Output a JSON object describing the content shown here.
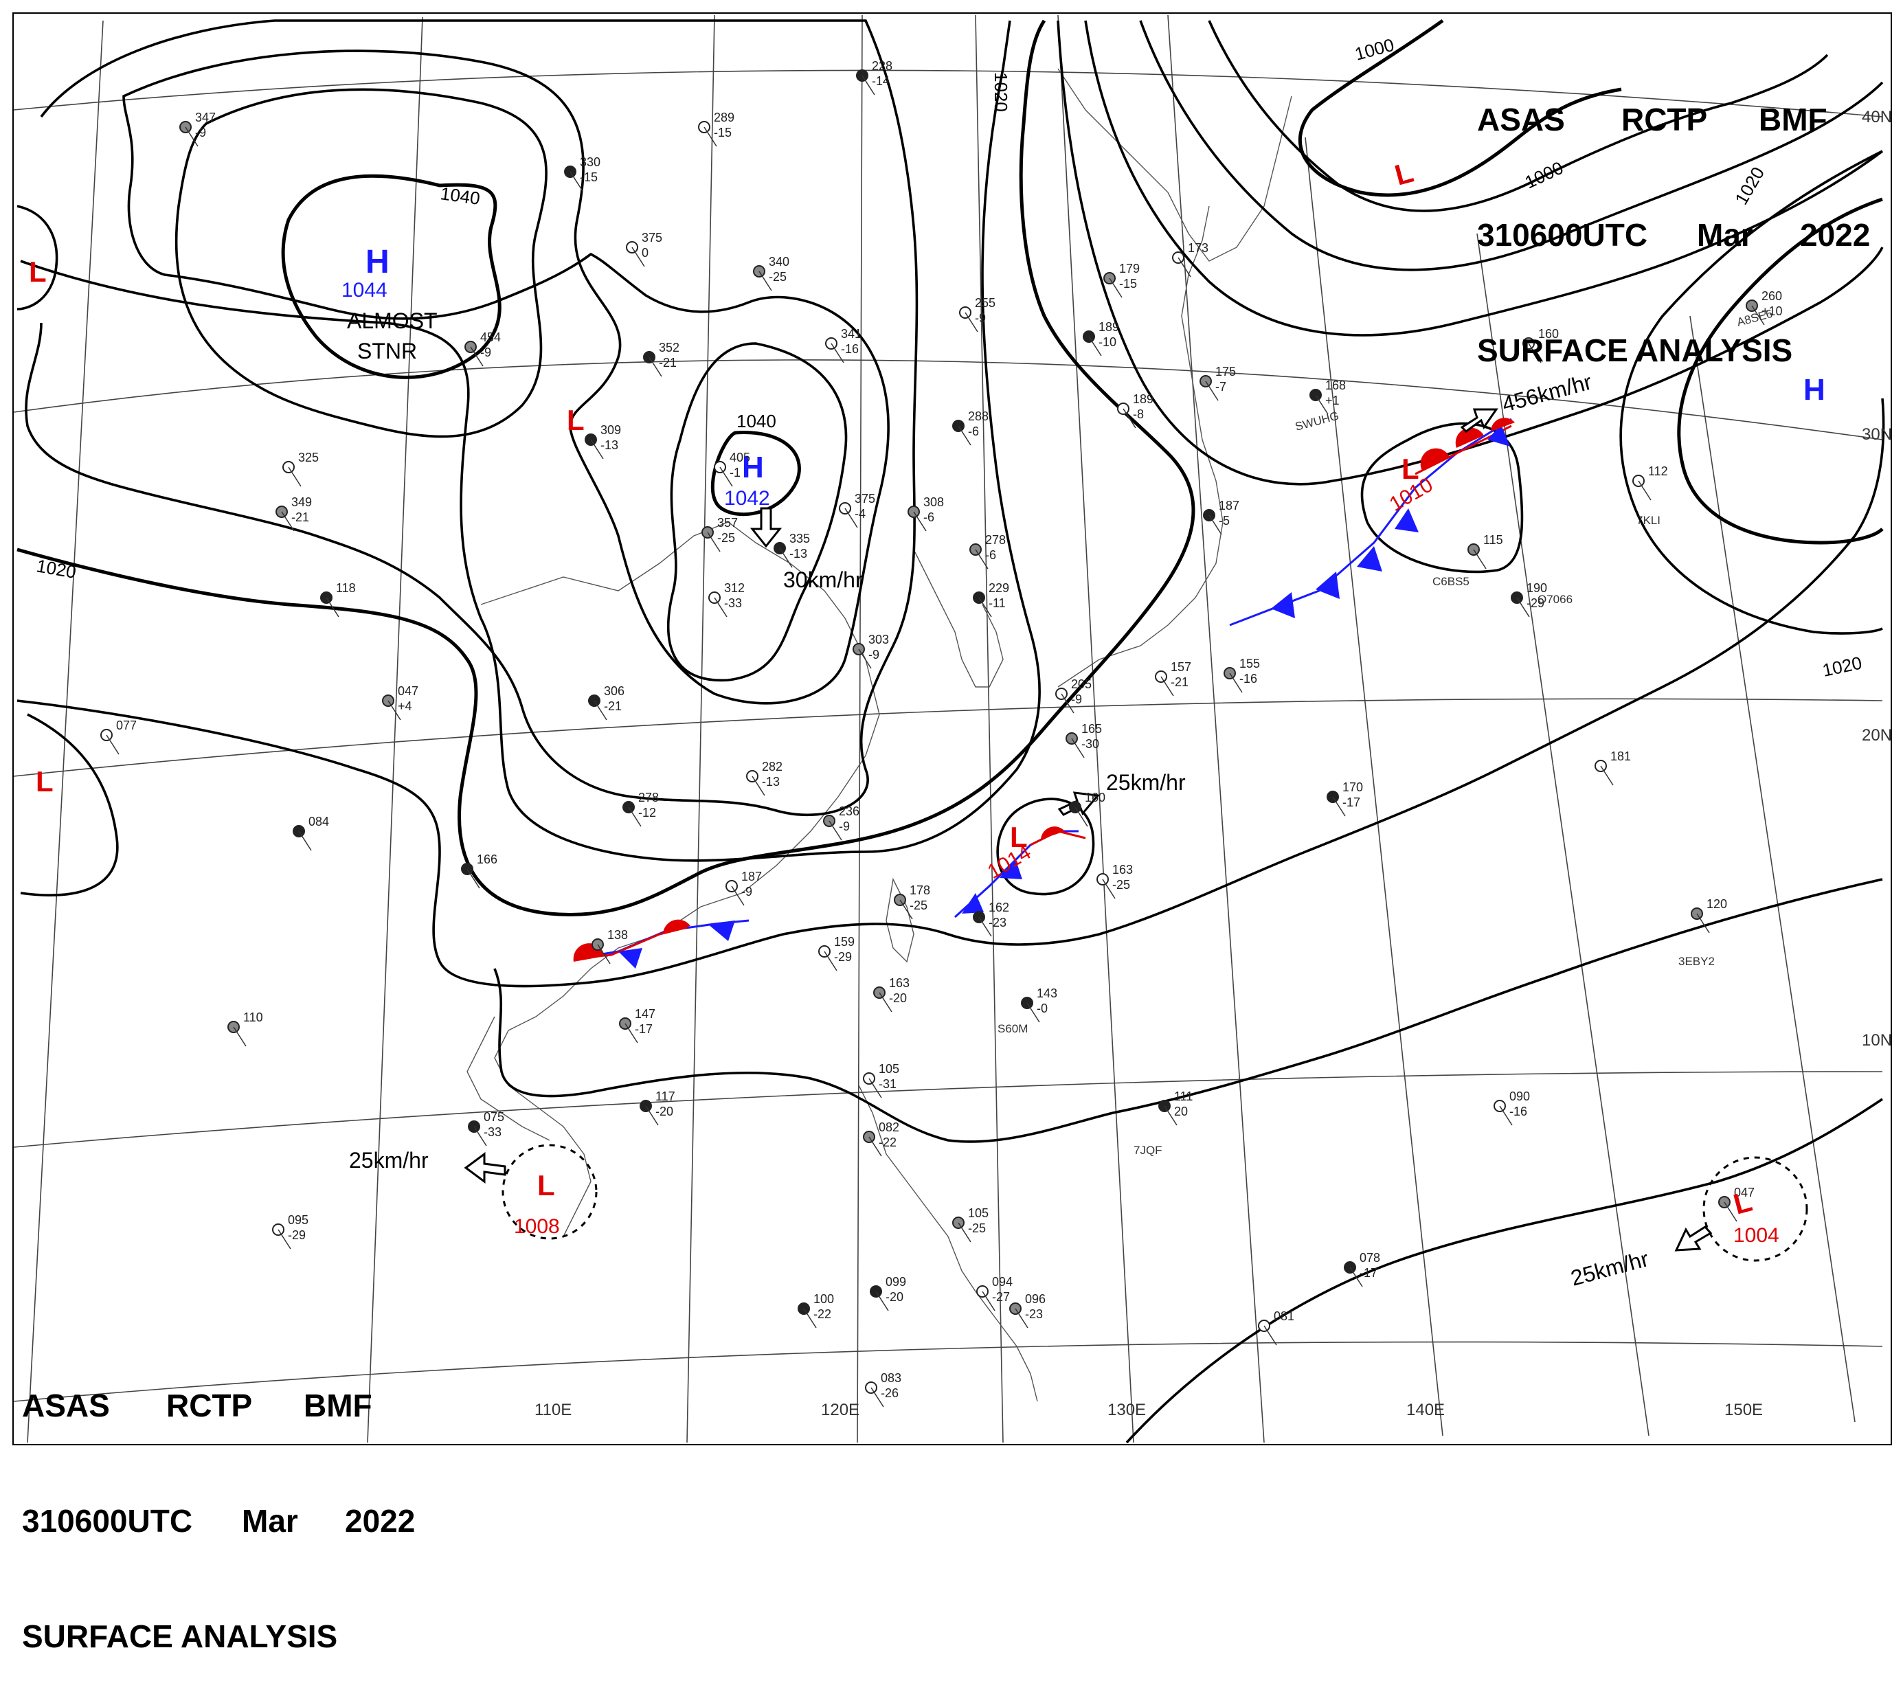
{
  "header": {
    "line1": [
      "ASAS",
      "RCTP",
      "BMF"
    ],
    "date": "310600UTC",
    "month": "Mar",
    "year": "2022",
    "title": "SURFACE ANALYSIS"
  },
  "latitudes": [
    "40N",
    "30N",
    "20N",
    "10N"
  ],
  "longitudes": [
    "110E",
    "120E",
    "130E",
    "140E",
    "150E"
  ],
  "isobar_labels": [
    "1040",
    "1040",
    "1020",
    "1020",
    "1020",
    "1020",
    "1000",
    "1000"
  ],
  "pressure_centers": [
    {
      "type": "H",
      "value": "1044",
      "note1": "ALMOST",
      "note2": "STNR"
    },
    {
      "type": "H",
      "value": "1042"
    },
    {
      "type": "H",
      "value": ""
    },
    {
      "type": "L",
      "value": "1010"
    },
    {
      "type": "L",
      "value": "1014"
    },
    {
      "type": "L",
      "value": "1008"
    },
    {
      "type": "L",
      "value": "1004"
    },
    {
      "type": "L",
      "value": ""
    },
    {
      "type": "L",
      "value": ""
    },
    {
      "type": "L",
      "value": ""
    },
    {
      "type": "L",
      "value": ""
    }
  ],
  "motions": [
    "30km/hr",
    "456km/hr",
    "25km/hr",
    "25km/hr",
    "25km/hr"
  ],
  "stations": [
    {
      "t": "228",
      "b": "-14"
    },
    {
      "t": "289",
      "b": "-15"
    },
    {
      "t": "347",
      "b": "-9"
    },
    {
      "t": "330",
      "b": "-15"
    },
    {
      "t": "375",
      "b": "0"
    },
    {
      "t": "340",
      "b": "-25"
    },
    {
      "t": "352",
      "b": "-21"
    },
    {
      "t": "341",
      "b": "-16"
    },
    {
      "t": "454",
      "b": "-9"
    },
    {
      "t": "309",
      "b": "-13"
    },
    {
      "t": "405",
      "b": "-1"
    },
    {
      "t": "357",
      "b": "-25"
    },
    {
      "t": "335",
      "b": "-13"
    },
    {
      "t": "375",
      "b": "-4"
    },
    {
      "t": "308",
      "b": "-6"
    },
    {
      "t": "288",
      "b": "-6"
    },
    {
      "t": "255",
      "b": "-9"
    },
    {
      "t": "278",
      "b": "-6"
    },
    {
      "t": "229",
      "b": "-11"
    },
    {
      "t": "312",
      "b": "-33"
    },
    {
      "t": "303",
      "b": "-9"
    },
    {
      "t": "306",
      "b": "-21"
    },
    {
      "t": "282",
      "b": "-13"
    },
    {
      "t": "236",
      "b": "-9"
    },
    {
      "t": "278",
      "b": "-12"
    },
    {
      "t": "187",
      "b": "-9"
    },
    {
      "t": "178",
      "b": "-25"
    },
    {
      "t": "162",
      "b": "-23"
    },
    {
      "t": "159",
      "b": "-29"
    },
    {
      "t": "163",
      "b": "-20"
    },
    {
      "t": "143",
      "b": "-0"
    },
    {
      "t": "163",
      "b": "-25"
    },
    {
      "t": "147",
      "b": "-17"
    },
    {
      "t": "117",
      "b": "-20"
    },
    {
      "t": "105",
      "b": "-31"
    },
    {
      "t": "082",
      "b": "-22"
    },
    {
      "t": "075",
      "b": "-33"
    },
    {
      "t": "095",
      "b": "-29"
    },
    {
      "t": "110",
      "b": ""
    },
    {
      "t": "084",
      "b": ""
    },
    {
      "t": "077",
      "b": ""
    },
    {
      "t": "047",
      "b": "+4"
    },
    {
      "t": "118",
      "b": ""
    },
    {
      "t": "325",
      "b": ""
    },
    {
      "t": "349",
      "b": "-21"
    },
    {
      "t": "166",
      "b": ""
    },
    {
      "t": "205",
      "b": "-9"
    },
    {
      "t": "165",
      "b": "-30"
    },
    {
      "t": "160",
      "b": ""
    },
    {
      "t": "157",
      "b": "-21"
    },
    {
      "t": "155",
      "b": "-16"
    },
    {
      "t": "187",
      "b": "-5"
    },
    {
      "t": "189",
      "b": "-8"
    },
    {
      "t": "175",
      "b": "-7"
    },
    {
      "t": "168",
      "b": "+1"
    },
    {
      "t": "173",
      "b": ""
    },
    {
      "t": "179",
      "b": "-15"
    },
    {
      "t": "189",
      "b": "-10"
    },
    {
      "t": "160",
      "b": ""
    },
    {
      "t": "115",
      "b": ""
    },
    {
      "t": "190",
      "b": "-29"
    },
    {
      "t": "112",
      "b": ""
    },
    {
      "t": "260",
      "b": "+10"
    },
    {
      "t": "170",
      "b": "-17"
    },
    {
      "t": "181",
      "b": ""
    },
    {
      "t": "120",
      "b": ""
    },
    {
      "t": "111",
      "b": "20"
    },
    {
      "t": "090",
      "b": "-16"
    },
    {
      "t": "047",
      "b": ""
    },
    {
      "t": "078",
      "b": "-17"
    },
    {
      "t": "081",
      "b": ""
    },
    {
      "t": "105",
      "b": "-25"
    },
    {
      "t": "099",
      "b": "-20"
    },
    {
      "t": "094",
      "b": "-27"
    },
    {
      "t": "096",
      "b": "-23"
    },
    {
      "t": "100",
      "b": "-22"
    },
    {
      "t": "083",
      "b": "-26"
    },
    {
      "t": "138",
      "b": ""
    }
  ],
  "ship_ids": [
    "SWUHG",
    "C6BS5",
    "O7066",
    "7KLI",
    "A8SE6",
    "3EBY2",
    "S60M",
    "7JQF"
  ],
  "colors": {
    "front_red": "#e00000",
    "front_blue": "#1a1aff",
    "high": "#1a1aff",
    "low": "#e00000",
    "line": "#000000"
  }
}
